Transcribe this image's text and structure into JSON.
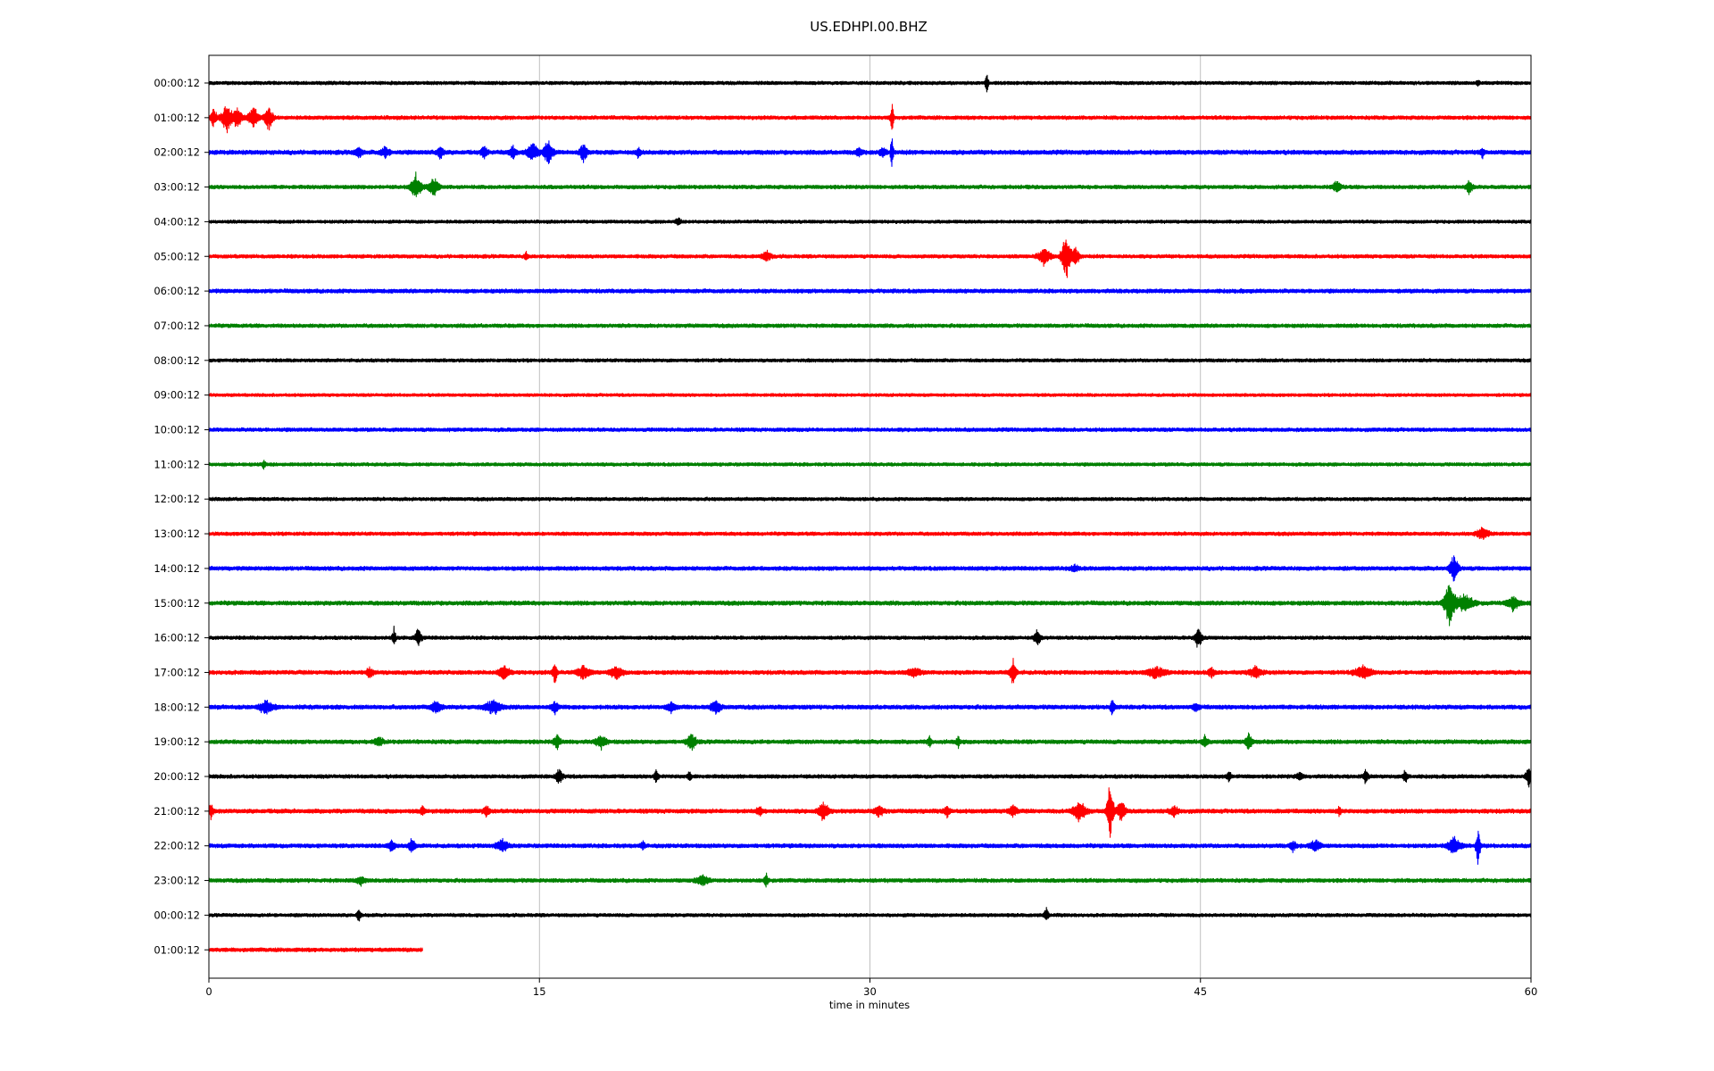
{
  "chart_data": {
    "type": "line",
    "title": "US.EDHPI.00.BHZ",
    "xlabel": "time in minutes",
    "ylabel": "",
    "xlim": [
      0,
      60
    ],
    "x_ticks": [
      0,
      15,
      30,
      45,
      60
    ],
    "x_tick_labels": [
      "0",
      "15",
      "30",
      "45",
      "60"
    ],
    "grid": "vertical",
    "line_colors": [
      "#000000",
      "#ff0000",
      "#0000ff",
      "#008000"
    ],
    "rows": [
      {
        "label": "00:00:12",
        "color": "#000000",
        "end_minute": 60,
        "noise": 2.2,
        "events": [
          {
            "t": 35.3,
            "amp": 16,
            "dur": 0.15
          },
          {
            "t": 57.6,
            "amp": 5,
            "dur": 0.15
          }
        ]
      },
      {
        "label": "01:00:12",
        "color": "#ff0000",
        "end_minute": 60,
        "noise": 2.4,
        "events": [
          {
            "t": 0.2,
            "amp": 14,
            "dur": 0.3
          },
          {
            "t": 0.8,
            "amp": 18,
            "dur": 0.5
          },
          {
            "t": 1.3,
            "amp": 16,
            "dur": 0.4
          },
          {
            "t": 2.0,
            "amp": 14,
            "dur": 0.5
          },
          {
            "t": 2.7,
            "amp": 16,
            "dur": 0.4
          },
          {
            "t": 31.0,
            "amp": 22,
            "dur": 0.15
          }
        ]
      },
      {
        "label": "02:00:12",
        "color": "#0000ff",
        "end_minute": 60,
        "noise": 2.8,
        "events": [
          {
            "t": 6.8,
            "amp": 6,
            "dur": 0.4
          },
          {
            "t": 8.0,
            "amp": 7,
            "dur": 0.4
          },
          {
            "t": 10.5,
            "amp": 9,
            "dur": 0.3
          },
          {
            "t": 12.5,
            "amp": 8,
            "dur": 0.3
          },
          {
            "t": 13.8,
            "amp": 9,
            "dur": 0.3
          },
          {
            "t": 14.7,
            "amp": 14,
            "dur": 0.5
          },
          {
            "t": 15.4,
            "amp": 18,
            "dur": 0.4
          },
          {
            "t": 17.0,
            "amp": 14,
            "dur": 0.3
          },
          {
            "t": 19.5,
            "amp": 7,
            "dur": 0.2
          },
          {
            "t": 29.5,
            "amp": 5,
            "dur": 0.3
          },
          {
            "t": 30.6,
            "amp": 8,
            "dur": 0.3
          },
          {
            "t": 31.0,
            "amp": 32,
            "dur": 0.12
          },
          {
            "t": 57.8,
            "amp": 6,
            "dur": 0.2
          }
        ]
      },
      {
        "label": "03:00:12",
        "color": "#008000",
        "end_minute": 60,
        "noise": 2.4,
        "events": [
          {
            "t": 9.4,
            "amp": 16,
            "dur": 0.5
          },
          {
            "t": 10.2,
            "amp": 12,
            "dur": 0.5
          },
          {
            "t": 51.2,
            "amp": 7,
            "dur": 0.4
          },
          {
            "t": 57.2,
            "amp": 9,
            "dur": 0.3
          }
        ]
      },
      {
        "label": "04:00:12",
        "color": "#000000",
        "end_minute": 60,
        "noise": 2.1,
        "events": [
          {
            "t": 21.3,
            "amp": 4,
            "dur": 0.3
          }
        ]
      },
      {
        "label": "05:00:12",
        "color": "#ff0000",
        "end_minute": 60,
        "noise": 2.3,
        "events": [
          {
            "t": 14.4,
            "amp": 5,
            "dur": 0.2
          },
          {
            "t": 25.3,
            "amp": 8,
            "dur": 0.4
          },
          {
            "t": 37.9,
            "amp": 11,
            "dur": 0.6
          },
          {
            "t": 38.9,
            "amp": 34,
            "dur": 0.4
          },
          {
            "t": 39.3,
            "amp": 14,
            "dur": 0.4
          }
        ]
      },
      {
        "label": "06:00:12",
        "color": "#0000ff",
        "end_minute": 60,
        "noise": 2.6,
        "events": []
      },
      {
        "label": "07:00:12",
        "color": "#008000",
        "end_minute": 60,
        "noise": 2.4,
        "events": []
      },
      {
        "label": "08:00:12",
        "color": "#000000",
        "end_minute": 60,
        "noise": 2.2,
        "events": []
      },
      {
        "label": "09:00:12",
        "color": "#ff0000",
        "end_minute": 60,
        "noise": 2.0,
        "events": []
      },
      {
        "label": "10:00:12",
        "color": "#0000ff",
        "end_minute": 60,
        "noise": 2.4,
        "events": []
      },
      {
        "label": "11:00:12",
        "color": "#008000",
        "end_minute": 60,
        "noise": 2.2,
        "events": [
          {
            "t": 2.5,
            "amp": 6,
            "dur": 0.15
          }
        ]
      },
      {
        "label": "12:00:12",
        "color": "#000000",
        "end_minute": 60,
        "noise": 2.2,
        "events": []
      },
      {
        "label": "13:00:12",
        "color": "#ff0000",
        "end_minute": 60,
        "noise": 2.3,
        "events": [
          {
            "t": 57.8,
            "amp": 8,
            "dur": 0.6
          }
        ]
      },
      {
        "label": "14:00:12",
        "color": "#0000ff",
        "end_minute": 60,
        "noise": 2.6,
        "events": [
          {
            "t": 39.3,
            "amp": 5,
            "dur": 0.3
          },
          {
            "t": 56.5,
            "amp": 18,
            "dur": 0.4
          }
        ]
      },
      {
        "label": "15:00:12",
        "color": "#008000",
        "end_minute": 60,
        "noise": 2.7,
        "events": [
          {
            "t": 56.3,
            "amp": 30,
            "dur": 0.5
          },
          {
            "t": 57.0,
            "amp": 12,
            "dur": 0.8
          },
          {
            "t": 59.2,
            "amp": 9,
            "dur": 0.6
          }
        ]
      },
      {
        "label": "16:00:12",
        "color": "#000000",
        "end_minute": 60,
        "noise": 2.3,
        "events": [
          {
            "t": 8.4,
            "amp": 14,
            "dur": 0.15
          },
          {
            "t": 9.5,
            "amp": 11,
            "dur": 0.3
          },
          {
            "t": 37.6,
            "amp": 11,
            "dur": 0.3
          },
          {
            "t": 44.9,
            "amp": 15,
            "dur": 0.3
          }
        ]
      },
      {
        "label": "17:00:12",
        "color": "#ff0000",
        "end_minute": 60,
        "noise": 2.6,
        "events": [
          {
            "t": 7.3,
            "amp": 7,
            "dur": 0.3
          },
          {
            "t": 13.4,
            "amp": 9,
            "dur": 0.5
          },
          {
            "t": 15.7,
            "amp": 18,
            "dur": 0.2
          },
          {
            "t": 17.0,
            "amp": 9,
            "dur": 0.6
          },
          {
            "t": 18.5,
            "amp": 9,
            "dur": 0.6
          },
          {
            "t": 32.0,
            "amp": 6,
            "dur": 0.6
          },
          {
            "t": 36.5,
            "amp": 16,
            "dur": 0.3
          },
          {
            "t": 43.0,
            "amp": 8,
            "dur": 0.8
          },
          {
            "t": 45.5,
            "amp": 7,
            "dur": 0.3
          },
          {
            "t": 47.5,
            "amp": 7,
            "dur": 0.6
          },
          {
            "t": 52.4,
            "amp": 8,
            "dur": 0.8
          }
        ]
      },
      {
        "label": "18:00:12",
        "color": "#0000ff",
        "end_minute": 60,
        "noise": 2.7,
        "events": [
          {
            "t": 2.6,
            "amp": 8,
            "dur": 0.7
          },
          {
            "t": 10.3,
            "amp": 8,
            "dur": 0.5
          },
          {
            "t": 12.9,
            "amp": 9,
            "dur": 0.8
          },
          {
            "t": 15.7,
            "amp": 8,
            "dur": 0.3
          },
          {
            "t": 21.0,
            "amp": 7,
            "dur": 0.4
          },
          {
            "t": 23.0,
            "amp": 8,
            "dur": 0.5
          },
          {
            "t": 41.0,
            "amp": 10,
            "dur": 0.2
          },
          {
            "t": 44.8,
            "amp": 5,
            "dur": 0.3
          }
        ]
      },
      {
        "label": "19:00:12",
        "color": "#008000",
        "end_minute": 60,
        "noise": 2.6,
        "events": [
          {
            "t": 7.7,
            "amp": 6,
            "dur": 0.4
          },
          {
            "t": 15.8,
            "amp": 10,
            "dur": 0.3
          },
          {
            "t": 17.8,
            "amp": 8,
            "dur": 0.5
          },
          {
            "t": 21.9,
            "amp": 12,
            "dur": 0.4
          },
          {
            "t": 32.7,
            "amp": 7,
            "dur": 0.2
          },
          {
            "t": 34.0,
            "amp": 7,
            "dur": 0.2
          },
          {
            "t": 45.2,
            "amp": 7,
            "dur": 0.3
          },
          {
            "t": 47.2,
            "amp": 14,
            "dur": 0.3
          }
        ]
      },
      {
        "label": "20:00:12",
        "color": "#000000",
        "end_minute": 60,
        "noise": 2.4,
        "events": [
          {
            "t": 15.9,
            "amp": 12,
            "dur": 0.3
          },
          {
            "t": 20.3,
            "amp": 9,
            "dur": 0.2
          },
          {
            "t": 21.8,
            "amp": 6,
            "dur": 0.2
          },
          {
            "t": 46.3,
            "amp": 7,
            "dur": 0.2
          },
          {
            "t": 49.5,
            "amp": 5,
            "dur": 0.3
          },
          {
            "t": 52.5,
            "amp": 10,
            "dur": 0.2
          },
          {
            "t": 54.3,
            "amp": 10,
            "dur": 0.2
          },
          {
            "t": 59.9,
            "amp": 12,
            "dur": 0.3
          }
        ]
      },
      {
        "label": "21:00:12",
        "color": "#ff0000",
        "end_minute": 60,
        "noise": 2.7,
        "events": [
          {
            "t": 0.1,
            "amp": 10,
            "dur": 0.2
          },
          {
            "t": 9.7,
            "amp": 6,
            "dur": 0.2
          },
          {
            "t": 12.6,
            "amp": 7,
            "dur": 0.3
          },
          {
            "t": 25.0,
            "amp": 6,
            "dur": 0.3
          },
          {
            "t": 27.9,
            "amp": 12,
            "dur": 0.5
          },
          {
            "t": 30.4,
            "amp": 7,
            "dur": 0.4
          },
          {
            "t": 33.5,
            "amp": 7,
            "dur": 0.3
          },
          {
            "t": 36.5,
            "amp": 7,
            "dur": 0.4
          },
          {
            "t": 39.5,
            "amp": 14,
            "dur": 0.6
          },
          {
            "t": 40.9,
            "amp": 40,
            "dur": 0.3
          },
          {
            "t": 41.4,
            "amp": 14,
            "dur": 0.4
          },
          {
            "t": 43.8,
            "amp": 7,
            "dur": 0.4
          },
          {
            "t": 51.3,
            "amp": 6,
            "dur": 0.2
          }
        ]
      },
      {
        "label": "22:00:12",
        "color": "#0000ff",
        "end_minute": 60,
        "noise": 2.6,
        "events": [
          {
            "t": 8.3,
            "amp": 8,
            "dur": 0.3
          },
          {
            "t": 9.2,
            "amp": 9,
            "dur": 0.3
          },
          {
            "t": 13.3,
            "amp": 9,
            "dur": 0.5
          },
          {
            "t": 19.7,
            "amp": 5,
            "dur": 0.2
          },
          {
            "t": 49.2,
            "amp": 7,
            "dur": 0.3
          },
          {
            "t": 50.2,
            "amp": 7,
            "dur": 0.5
          },
          {
            "t": 56.5,
            "amp": 12,
            "dur": 0.6
          },
          {
            "t": 57.6,
            "amp": 26,
            "dur": 0.2
          }
        ]
      },
      {
        "label": "23:00:12",
        "color": "#008000",
        "end_minute": 60,
        "noise": 2.5,
        "events": [
          {
            "t": 6.9,
            "amp": 5,
            "dur": 0.4
          },
          {
            "t": 22.4,
            "amp": 6,
            "dur": 0.6
          },
          {
            "t": 25.3,
            "amp": 9,
            "dur": 0.2
          }
        ]
      },
      {
        "label": "00:00:12",
        "color": "#000000",
        "end_minute": 60,
        "noise": 2.2,
        "events": [
          {
            "t": 6.8,
            "amp": 12,
            "dur": 0.15
          },
          {
            "t": 38.0,
            "amp": 9,
            "dur": 0.2
          }
        ]
      },
      {
        "label": "01:00:12",
        "color": "#ff0000",
        "end_minute": 9.7,
        "noise": 2.5,
        "events": []
      }
    ]
  }
}
